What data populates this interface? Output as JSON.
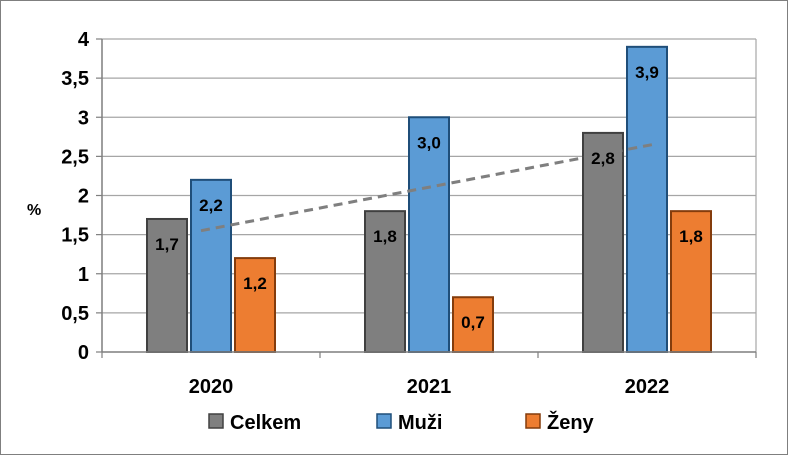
{
  "chart_data": {
    "type": "bar",
    "categories": [
      "2020",
      "2021",
      "2022"
    ],
    "series": [
      {
        "name": "Celkem",
        "values": [
          1.7,
          1.8,
          2.8
        ],
        "labels": [
          "1,7",
          "1,8",
          "2,8"
        ],
        "color": "#7f7f7f"
      },
      {
        "name": "Muži",
        "values": [
          2.2,
          3.0,
          3.9
        ],
        "labels": [
          "2,2",
          "3,0",
          "3,9"
        ],
        "color": "#5b9bd5"
      },
      {
        "name": "Ženy",
        "values": [
          1.2,
          0.7,
          1.8
        ],
        "labels": [
          "1,2",
          "0,7",
          "1,8"
        ],
        "color": "#ed7d31"
      }
    ],
    "ylabel": "%",
    "ylim": [
      0,
      4
    ],
    "yticks": [
      0,
      0.5,
      1,
      1.5,
      2,
      2.5,
      3,
      3.5,
      4
    ],
    "ytick_labels": [
      "0",
      "0,5",
      "1",
      "1,5",
      "2",
      "2,5",
      "3",
      "3,5",
      "4"
    ],
    "trendline": {
      "series": "Celkem",
      "style": "dashed",
      "color": "#7f7f7f"
    },
    "grid": true,
    "legend_position": "bottom"
  }
}
